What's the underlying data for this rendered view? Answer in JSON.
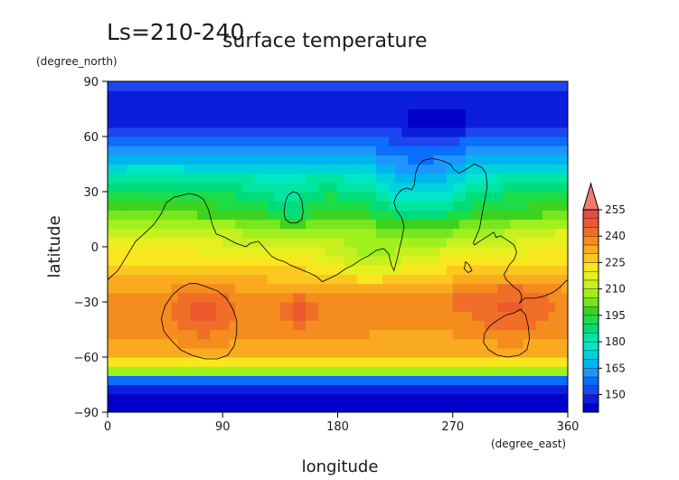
{
  "chart_data": {
    "type": "heatmap",
    "title_prefix": "Ls=210-240",
    "title": "surface temperature",
    "xlabel": "longitude",
    "ylabel": "latitude",
    "x_unit": "(degree_east)",
    "y_unit": "(degree_north)",
    "xlim": [
      0,
      360
    ],
    "ylim": [
      -90,
      90
    ],
    "xticks": [
      0,
      90,
      180,
      270,
      360
    ],
    "yticks": [
      -90,
      -60,
      -30,
      0,
      30,
      60,
      90
    ],
    "grid": false,
    "colorbar": {
      "ticks": [
        150,
        165,
        180,
        195,
        210,
        225,
        240,
        255
      ],
      "max_arrow_color": "#f07a6e",
      "levels": [
        {
          "from": 140,
          "to": 145,
          "color": "#0000c8"
        },
        {
          "from": 145,
          "to": 150,
          "color": "#0a1edc"
        },
        {
          "from": 150,
          "to": 155,
          "color": "#1e46f0"
        },
        {
          "from": 155,
          "to": 160,
          "color": "#0a6eff"
        },
        {
          "from": 160,
          "to": 165,
          "color": "#1e96ff"
        },
        {
          "from": 165,
          "to": 170,
          "color": "#00b4f0"
        },
        {
          "from": 170,
          "to": 175,
          "color": "#00d2dc"
        },
        {
          "from": 175,
          "to": 180,
          "color": "#00e6c8"
        },
        {
          "from": 180,
          "to": 185,
          "color": "#00e6a0"
        },
        {
          "from": 185,
          "to": 190,
          "color": "#00dc78"
        },
        {
          "from": 190,
          "to": 195,
          "color": "#1edc46"
        },
        {
          "from": 195,
          "to": 200,
          "color": "#3cd21e"
        },
        {
          "from": 200,
          "to": 205,
          "color": "#78e61e"
        },
        {
          "from": 205,
          "to": 210,
          "color": "#a0f01e"
        },
        {
          "from": 210,
          "to": 215,
          "color": "#c8f01e"
        },
        {
          "from": 215,
          "to": 220,
          "color": "#e6f01e"
        },
        {
          "from": 220,
          "to": 225,
          "color": "#fae61e"
        },
        {
          "from": 225,
          "to": 230,
          "color": "#fac81e"
        },
        {
          "from": 230,
          "to": 235,
          "color": "#faaa1e"
        },
        {
          "from": 235,
          "to": 240,
          "color": "#f58c1e"
        },
        {
          "from": 240,
          "to": 245,
          "color": "#f06e28"
        },
        {
          "from": 245,
          "to": 250,
          "color": "#ec5a2d"
        },
        {
          "from": 250,
          "to": 255,
          "color": "#e84a46"
        },
        {
          "from": 255,
          "to": 260,
          "color": "#e96e64"
        }
      ]
    },
    "lat_profile": [
      {
        "lat": -87.5,
        "t": 143
      },
      {
        "lat": -82.5,
        "t": 144
      },
      {
        "lat": -77.5,
        "t": 147
      },
      {
        "lat": -72.5,
        "t": 158
      },
      {
        "lat": -67.5,
        "t": 208
      },
      {
        "lat": -62.5,
        "t": 224
      },
      {
        "lat": -57.5,
        "t": 232
      },
      {
        "lat": -52.5,
        "t": 234
      },
      {
        "lat": -47.5,
        "t": 236
      },
      {
        "lat": -42.5,
        "t": 237
      },
      {
        "lat": -37.5,
        "t": 238
      },
      {
        "lat": -32.5,
        "t": 238
      },
      {
        "lat": -27.5,
        "t": 237
      },
      {
        "lat": -22.5,
        "t": 234
      },
      {
        "lat": -17.5,
        "t": 230
      },
      {
        "lat": -12.5,
        "t": 226
      },
      {
        "lat": -7.5,
        "t": 222
      },
      {
        "lat": -2.5,
        "t": 218
      },
      {
        "lat": 2.5,
        "t": 214
      },
      {
        "lat": 7.5,
        "t": 210
      },
      {
        "lat": 12.5,
        "t": 205
      },
      {
        "lat": 17.5,
        "t": 199
      },
      {
        "lat": 22.5,
        "t": 195
      },
      {
        "lat": 27.5,
        "t": 191
      },
      {
        "lat": 32.5,
        "t": 186
      },
      {
        "lat": 37.5,
        "t": 181
      },
      {
        "lat": 42.5,
        "t": 175
      },
      {
        "lat": 47.5,
        "t": 169
      },
      {
        "lat": 52.5,
        "t": 163
      },
      {
        "lat": 57.5,
        "t": 158
      },
      {
        "lat": 62.5,
        "t": 153
      },
      {
        "lat": 67.5,
        "t": 149
      },
      {
        "lat": 72.5,
        "t": 147
      },
      {
        "lat": 77.5,
        "t": 147
      },
      {
        "lat": 82.5,
        "t": 149
      },
      {
        "lat": 87.5,
        "t": 151
      }
    ],
    "anomalies": [
      {
        "lon": 75,
        "lat": -35,
        "r_lon": 22,
        "r_lat": 14,
        "dt": 9
      },
      {
        "lon": 150,
        "lat": -35,
        "r_lon": 14,
        "r_lat": 9,
        "dt": 8
      },
      {
        "lon": 315,
        "lat": -30,
        "r_lon": 30,
        "r_lat": 16,
        "dt": 8
      },
      {
        "lon": 275,
        "lat": -28,
        "r_lon": 8,
        "r_lat": 5,
        "dt": 5
      },
      {
        "lon": 245,
        "lat": 30,
        "r_lon": 38,
        "r_lat": 25,
        "dt": -16
      },
      {
        "lon": 145,
        "lat": 18,
        "r_lon": 15,
        "r_lat": 13,
        "dt": -8
      },
      {
        "lon": 205,
        "lat": -8,
        "r_lon": 35,
        "r_lat": 12,
        "dt": -10
      },
      {
        "lon": 130,
        "lat": 25,
        "r_lon": 25,
        "r_lat": 12,
        "dt": -4
      },
      {
        "lon": 45,
        "lat": 5,
        "r_lon": 35,
        "r_lat": 12,
        "dt": 5
      },
      {
        "lon": 350,
        "lat": 5,
        "r_lon": 25,
        "r_lat": 10,
        "dt": 5
      },
      {
        "lon": 260,
        "lat": 68,
        "r_lon": 25,
        "r_lat": 6,
        "dt": -6
      },
      {
        "lon": 240,
        "lat": -50,
        "r_lon": 30,
        "r_lat": 8,
        "dt": -4
      }
    ],
    "contours": [
      {
        "name": "continent-outline",
        "points": [
          [
            0,
            -18
          ],
          [
            8,
            -13
          ],
          [
            15,
            -5
          ],
          [
            22,
            3
          ],
          [
            30,
            8
          ],
          [
            36,
            12
          ],
          [
            42,
            18
          ],
          [
            46,
            24
          ],
          [
            52,
            27
          ],
          [
            58,
            28
          ],
          [
            64,
            29
          ],
          [
            70,
            28
          ],
          [
            75,
            26
          ],
          [
            79,
            20
          ],
          [
            82,
            12
          ],
          [
            85,
            7
          ],
          [
            92,
            5
          ],
          [
            100,
            2
          ],
          [
            108,
            0
          ],
          [
            112,
            2
          ],
          [
            118,
            3
          ],
          [
            123,
            -1
          ],
          [
            128,
            -5
          ],
          [
            133,
            -7
          ],
          [
            138,
            -8
          ],
          [
            143,
            -10
          ],
          [
            150,
            -12
          ],
          [
            157,
            -14
          ],
          [
            163,
            -16
          ],
          [
            168,
            -19
          ],
          [
            174,
            -17
          ],
          [
            180,
            -15
          ],
          [
            186,
            -12
          ],
          [
            192,
            -10
          ],
          [
            198,
            -7
          ],
          [
            204,
            -5
          ],
          [
            210,
            -2
          ],
          [
            216,
            -1
          ],
          [
            220,
            -4
          ],
          [
            222,
            -10
          ],
          [
            224,
            -13
          ],
          [
            226,
            -8
          ],
          [
            228,
            -2
          ],
          [
            230,
            4
          ],
          [
            232,
            11
          ],
          [
            230,
            16
          ],
          [
            226,
            20
          ],
          [
            224,
            24
          ],
          [
            226,
            28
          ],
          [
            230,
            31
          ],
          [
            234,
            32
          ],
          [
            238,
            31
          ],
          [
            240,
            34
          ],
          [
            241,
            40
          ],
          [
            243,
            44
          ],
          [
            247,
            47
          ],
          [
            254,
            48
          ],
          [
            261,
            47
          ],
          [
            268,
            45
          ],
          [
            271,
            42
          ],
          [
            275,
            40
          ],
          [
            280,
            42
          ],
          [
            287,
            45
          ],
          [
            293,
            43
          ],
          [
            296,
            40
          ],
          [
            297,
            33
          ],
          [
            295,
            25
          ],
          [
            293,
            18
          ],
          [
            291,
            10
          ],
          [
            288,
            5
          ],
          [
            286,
            2
          ],
          [
            287,
            1
          ],
          [
            291,
            3
          ],
          [
            298,
            6
          ],
          [
            302,
            8
          ],
          [
            304,
            5
          ],
          [
            307,
            6
          ],
          [
            312,
            4
          ],
          [
            318,
            1
          ],
          [
            320,
            -3
          ],
          [
            318,
            -7
          ],
          [
            314,
            -10
          ],
          [
            312,
            -13
          ],
          [
            310,
            -15
          ],
          [
            312,
            -18
          ],
          [
            318,
            -22
          ],
          [
            322,
            -24
          ],
          [
            324,
            -27
          ],
          [
            323,
            -30
          ],
          [
            322,
            -31
          ],
          [
            326,
            -28
          ],
          [
            334,
            -28
          ],
          [
            341,
            -27
          ],
          [
            348,
            -25
          ],
          [
            354,
            -22
          ],
          [
            358,
            -19
          ],
          [
            360,
            -18
          ]
        ]
      },
      {
        "name": "hellas-outline",
        "points": [
          [
            70,
            -20
          ],
          [
            78,
            -22
          ],
          [
            86,
            -24
          ],
          [
            93,
            -28
          ],
          [
            98,
            -34
          ],
          [
            101,
            -40
          ],
          [
            101,
            -47
          ],
          [
            99,
            -54
          ],
          [
            94,
            -59
          ],
          [
            86,
            -61
          ],
          [
            76,
            -61
          ],
          [
            66,
            -59
          ],
          [
            57,
            -56
          ],
          [
            50,
            -51
          ],
          [
            44,
            -46
          ],
          [
            42,
            -39
          ],
          [
            45,
            -32
          ],
          [
            51,
            -26
          ],
          [
            58,
            -22
          ],
          [
            64,
            -20
          ],
          [
            70,
            -20
          ]
        ]
      },
      {
        "name": "argyre-outline",
        "points": [
          [
            318,
            -36
          ],
          [
            323,
            -34
          ],
          [
            327,
            -37
          ],
          [
            329,
            -43
          ],
          [
            330,
            -50
          ],
          [
            328,
            -56
          ],
          [
            322,
            -59
          ],
          [
            313,
            -60
          ],
          [
            305,
            -59
          ],
          [
            298,
            -56
          ],
          [
            294,
            -52
          ],
          [
            295,
            -47
          ],
          [
            299,
            -43
          ],
          [
            305,
            -40
          ],
          [
            312,
            -37
          ],
          [
            318,
            -36
          ]
        ]
      },
      {
        "name": "elysium-outline",
        "points": [
          [
            145,
            30
          ],
          [
            149,
            29
          ],
          [
            152,
            25
          ],
          [
            153,
            19
          ],
          [
            152,
            15
          ],
          [
            148,
            13
          ],
          [
            143,
            13
          ],
          [
            139,
            15
          ],
          [
            138,
            19
          ],
          [
            139,
            24
          ],
          [
            141,
            28
          ],
          [
            145,
            30
          ]
        ]
      },
      {
        "name": "spot-outline",
        "points": [
          [
            280,
            -8
          ],
          [
            283,
            -10
          ],
          [
            285,
            -13
          ],
          [
            282,
            -14
          ],
          [
            279,
            -12
          ],
          [
            280,
            -8
          ]
        ]
      }
    ]
  }
}
